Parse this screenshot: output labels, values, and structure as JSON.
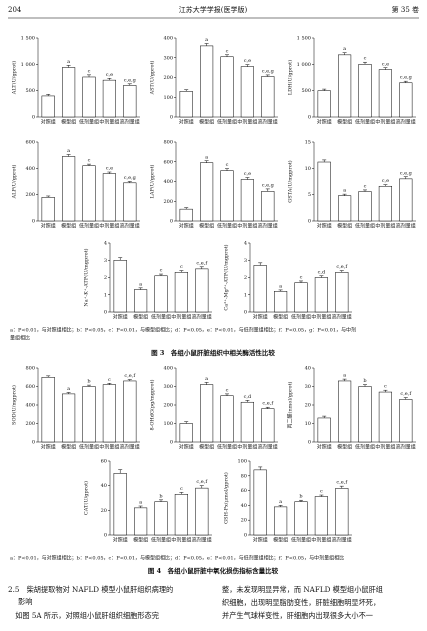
{
  "header": {
    "page": "204",
    "journal": "江苏大学学报(医学版)",
    "volume": "第 35 卷"
  },
  "chart_data": [
    {
      "type": "bar",
      "ylabel": "ALT(U/gprot)",
      "categories": [
        "对照组",
        "模型组",
        "低剂量组",
        "中剂量组",
        "高剂量组"
      ],
      "values": [
        400,
        940,
        760,
        700,
        600
      ],
      "errors": [
        30,
        40,
        40,
        35,
        30
      ],
      "annotations": [
        null,
        "a",
        "c",
        "c,e",
        "c,e,g"
      ],
      "color": "#ffffff",
      "ylim": [
        0,
        1500
      ],
      "yticks": [
        0,
        500,
        {
          "value": 1000,
          "label": "1 000"
        },
        {
          "value": 1500,
          "label": "1 500"
        }
      ]
    },
    {
      "type": "bar",
      "ylabel": "AST(U/gprot)",
      "categories": [
        "对照组",
        "模型组",
        "低剂量组",
        "中剂量组",
        "高剂量组"
      ],
      "values": [
        130,
        360,
        305,
        255,
        205
      ],
      "errors": [
        8,
        12,
        10,
        10,
        8
      ],
      "annotations": [
        null,
        "a",
        "c",
        "c,e",
        "c,e,g"
      ],
      "color": "#ffffff",
      "ylim": [
        0,
        400
      ],
      "yticks": [
        0,
        100,
        200,
        300,
        400
      ]
    },
    {
      "type": "bar",
      "ylabel": "LDH(U/gprot)",
      "categories": [
        "对照组",
        "模型组",
        "低剂量组",
        "中剂量组",
        "高剂量组"
      ],
      "values": [
        500,
        1180,
        1000,
        900,
        650
      ],
      "errors": [
        30,
        40,
        40,
        35,
        30
      ],
      "annotations": [
        null,
        "a",
        "c",
        "c,e",
        "c,e,g"
      ],
      "color": "#ffffff",
      "ylim": [
        0,
        1500
      ],
      "yticks": [
        0,
        500,
        {
          "value": 1000,
          "label": "1 000"
        },
        {
          "value": 1500,
          "label": "1 500"
        }
      ]
    },
    {
      "type": "bar",
      "ylabel": "ALP(U/gprot)",
      "categories": [
        "对照组",
        "模型组",
        "低剂量组",
        "中剂量组",
        "高剂量组"
      ],
      "values": [
        180,
        490,
        420,
        360,
        290
      ],
      "errors": [
        10,
        15,
        12,
        12,
        10
      ],
      "annotations": [
        null,
        "a",
        "c",
        "c,e",
        "c,e,g"
      ],
      "color": "#ffffff",
      "ylim": [
        0,
        600
      ],
      "yticks": [
        0,
        200,
        400,
        600
      ]
    },
    {
      "type": "bar",
      "ylabel": "LAP(U/gprot)",
      "categories": [
        "对照组",
        "模型组",
        "低剂量组",
        "中剂量组",
        "高剂量组"
      ],
      "values": [
        120,
        590,
        510,
        420,
        300
      ],
      "errors": [
        15,
        20,
        20,
        20,
        25
      ],
      "annotations": [
        null,
        "a",
        "c",
        "c,e",
        "c,e,g"
      ],
      "color": "#ffffff",
      "ylim": [
        0,
        800
      ],
      "yticks": [
        0,
        200,
        400,
        600,
        800
      ]
    },
    {
      "type": "bar",
      "ylabel": "GSTA(U/mgprot)",
      "categories": [
        "对照组",
        "模型组",
        "低剂量组",
        "中剂量组",
        "高剂量组"
      ],
      "values": [
        11.2,
        4.8,
        5.6,
        6.6,
        8
      ],
      "errors": [
        0.4,
        0.3,
        0.3,
        0.3,
        0.4
      ],
      "annotations": [
        null,
        "a",
        "c",
        "c,e",
        "c,e,g"
      ],
      "color": "#ffffff",
      "ylim": [
        0,
        15
      ],
      "yticks": [
        0,
        5,
        10,
        15
      ]
    },
    {
      "type": "bar",
      "ylabel": "Na⁺-K⁺-ATP(U/mgprot)",
      "categories": [
        "对照组",
        "模型组",
        "低剂量组",
        "中剂量组",
        "高剂量组"
      ],
      "values": [
        3.0,
        1.3,
        2.1,
        2.3,
        2.5
      ],
      "errors": [
        0.15,
        0.1,
        0.1,
        0.1,
        0.12
      ],
      "annotations": [
        null,
        "a",
        "c",
        "c",
        "c,e,f"
      ],
      "color": "#ffffff",
      "ylim": [
        0,
        4
      ],
      "yticks": [
        0,
        1,
        2,
        3,
        4
      ]
    },
    {
      "type": "bar",
      "ylabel": "Ca²⁺-Mg²⁺-ATP(U/mgprot)",
      "categories": [
        "对照组",
        "模型组",
        "低剂量组",
        "中剂量组",
        "高剂量组"
      ],
      "values": [
        2.7,
        1.2,
        1.7,
        2.0,
        2.3
      ],
      "errors": [
        0.15,
        0.08,
        0.1,
        0.1,
        0.1
      ],
      "annotations": [
        null,
        "a",
        "c",
        "c,d",
        "c,e,f"
      ],
      "color": "#ffffff",
      "ylim": [
        0,
        4
      ],
      "yticks": [
        0,
        1,
        2,
        3,
        4
      ]
    },
    {
      "type": "bar",
      "ylabel": "SOD(U/mgprot)",
      "categories": [
        "对照组",
        "模型组",
        "低剂量组",
        "中剂量组",
        "高剂量组"
      ],
      "values": [
        700,
        520,
        600,
        620,
        660
      ],
      "errors": [
        15,
        15,
        15,
        15,
        15
      ],
      "annotations": [
        null,
        "a",
        "b",
        "c",
        "c,e,f"
      ],
      "color": "#ffffff",
      "ylim": [
        0,
        800
      ],
      "yticks": [
        0,
        200,
        400,
        600,
        800
      ]
    },
    {
      "type": "bar",
      "ylabel": "8-OHdG(pg/mgprot)",
      "categories": [
        "对照组",
        "模型组",
        "低剂量组",
        "中剂量组",
        "高剂量组"
      ],
      "values": [
        100,
        310,
        250,
        215,
        180
      ],
      "errors": [
        10,
        12,
        10,
        10,
        8
      ],
      "annotations": [
        null,
        "a",
        "c",
        "c,d",
        "c,e,f"
      ],
      "color": "#ffffff",
      "ylim": [
        0,
        400
      ],
      "yticks": [
        0,
        100,
        200,
        300,
        400
      ]
    },
    {
      "type": "bar",
      "ylabel": "丙二醛(nmol/gprot)",
      "categories": [
        "对照组",
        "模型组",
        "低剂量组",
        "中剂量组",
        "高剂量组"
      ],
      "values": [
        13,
        33,
        30,
        27,
        23
      ],
      "errors": [
        1,
        1,
        1,
        1,
        1
      ],
      "annotations": [
        null,
        "a",
        "b",
        "c",
        "c,e,f"
      ],
      "color": "#ffffff",
      "ylim": [
        0,
        40
      ],
      "yticks": [
        0,
        10,
        20,
        30,
        40
      ]
    },
    {
      "type": "bar",
      "ylabel": "CAT(U/gprot)",
      "categories": [
        "对照组",
        "模型组",
        "低剂量组",
        "中剂量组",
        "高剂量组"
      ],
      "values": [
        50,
        22,
        27,
        33,
        38
      ],
      "errors": [
        3,
        1.5,
        1.5,
        1.5,
        2
      ],
      "annotations": [
        null,
        "a",
        "b",
        "c",
        "c,e,f"
      ],
      "color": "#ffffff",
      "ylim": [
        0,
        60
      ],
      "yticks": [
        0,
        20,
        40,
        60
      ]
    },
    {
      "type": "bar",
      "ylabel": "GSH-Px(μmol/gprot)",
      "categories": [
        "对照组",
        "模型组",
        "低剂量组",
        "中剂量组",
        "高剂量组"
      ],
      "values": [
        88,
        38,
        45,
        52,
        63
      ],
      "errors": [
        4,
        2,
        2,
        2,
        3
      ],
      "annotations": [
        null,
        "a",
        "b",
        "c",
        "c,e,f"
      ],
      "color": "#ffffff",
      "ylim": [
        0,
        100
      ],
      "yticks": [
        0,
        20,
        40,
        60,
        80,
        100
      ]
    }
  ],
  "figure3": {
    "note": "a：P<0.01，与对照组相比；b：P<0.05，c：P<0.01，与模型组相比；d：P<0.05，e：P<0.01，与低剂量组相比；f：P<0.05，g：P<0.01，与中剂",
    "note2": "量组相比",
    "caption": "图 3　各组小鼠肝脏组织中相关酶活性比较"
  },
  "figure4": {
    "note": "a：P<0.01，与对照组相比；b：P<0.05，c：P<0.01，与模型组相比；d：P<0.05，e：P<0.01，与低剂量组相比；f：P<0.05，与中剂量组相比",
    "caption": "图 4　各组小鼠肝脏中氧化损伤指标含量比较"
  },
  "section": {
    "heading": "2.5　柴胡提取物对 NAFLD 模型小鼠肝组织病理的",
    "heading2": "影响",
    "left": "　如图 5A 所示，对照组小鼠肝组织细胞形态完",
    "right": [
      "整，未发现明显异常，而 NAFLD 模型组小鼠肝组",
      "织细胞，出现明显脂肪变性，肝脏细胞明显坏死，",
      "并产生气球样变性，肝细胞内出现很多大小不一"
    ]
  }
}
